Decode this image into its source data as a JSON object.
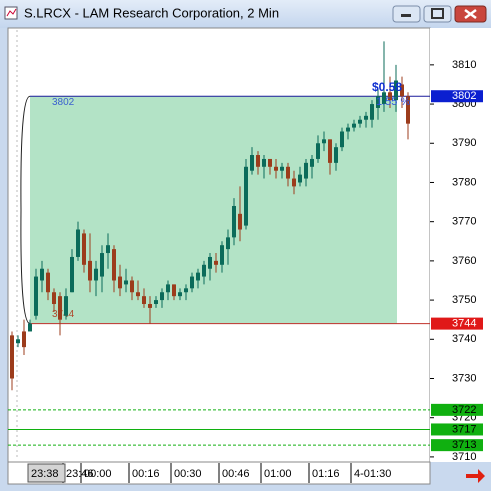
{
  "window": {
    "title": "S.LRCX - LAM Research Corporation, 2 Min"
  },
  "chart_data": {
    "type": "candlestick",
    "categories": [
      null,
      null,
      null,
      null,
      null,
      null,
      null,
      null,
      null,
      "23:46",
      null,
      null,
      "00:00",
      null,
      null,
      null,
      null,
      null,
      null,
      null,
      "00:16",
      null,
      null,
      null,
      null,
      null,
      null,
      "00:30",
      null,
      null,
      null,
      null,
      null,
      null,
      null,
      "00:46",
      null,
      null,
      null,
      null,
      null,
      null,
      "01:00",
      null,
      null,
      null,
      null,
      null,
      null,
      null,
      "01:16",
      null,
      null,
      null,
      null,
      null,
      null,
      "4-01:30",
      null,
      null,
      null,
      null,
      null,
      null,
      null,
      null,
      null
    ],
    "open": [
      3741,
      3739,
      3742,
      3742,
      3746,
      3755,
      3757,
      3752,
      3751,
      3746,
      3752,
      3761,
      3767,
      3760,
      3755,
      3756,
      3762,
      3763,
      3756,
      3754,
      3755,
      3752,
      3751,
      3749,
      3749,
      3750,
      3752,
      3754,
      3751,
      3752,
      3753,
      3755,
      3756,
      3758,
      3760,
      3759,
      3763,
      3766,
      3772,
      3769,
      3783,
      3787,
      3784,
      3786,
      3784,
      3783,
      3784,
      3781,
      3780,
      3781,
      3784,
      3786,
      3790,
      3791,
      3785,
      3789,
      3793,
      3794,
      3795,
      3796,
      3796,
      3799,
      3800,
      3803,
      3801,
      3805,
      3802
    ],
    "high": [
      3742,
      3741,
      3745,
      3745,
      3758,
      3760,
      3758,
      3753,
      3752,
      3753,
      3763,
      3770,
      3768,
      3767,
      3760,
      3764,
      3767,
      3764,
      3759,
      3758,
      3756,
      3755,
      3753,
      3751,
      3751,
      3753,
      3755,
      3754,
      3753,
      3754,
      3757,
      3758,
      3760,
      3762,
      3762,
      3765,
      3768,
      3776,
      3779,
      3786,
      3789,
      3788,
      3787,
      3786,
      3786,
      3785,
      3785,
      3783,
      3784,
      3786,
      3787,
      3792,
      3793,
      3791,
      3790,
      3794,
      3795,
      3796,
      3797,
      3798,
      3801,
      3804,
      3816,
      3807,
      3810,
      3807,
      3803
    ],
    "low": [
      3727,
      3738,
      3736,
      3742,
      3745,
      3752,
      3750,
      3747,
      3741,
      3745,
      3752,
      3760,
      3757,
      3752,
      3751,
      3752,
      3758,
      3752,
      3751,
      3752,
      3750,
      3750,
      3748,
      3744,
      3748,
      3748,
      3750,
      3750,
      3750,
      3750,
      3752,
      3753,
      3754,
      3755,
      3757,
      3757,
      3759,
      3764,
      3765,
      3768,
      3782,
      3782,
      3781,
      3782,
      3781,
      3781,
      3779,
      3777,
      3779,
      3779,
      3781,
      3785,
      3788,
      3782,
      3783,
      3788,
      3791,
      3793,
      3794,
      3794,
      3794,
      3796,
      3798,
      3799,
      3798,
      3799,
      3791
    ],
    "close": [
      3730,
      3740,
      3738,
      3744,
      3756,
      3758,
      3752,
      3749,
      3745,
      3751,
      3761,
      3768,
      3759,
      3755,
      3758,
      3762,
      3764,
      3755,
      3753,
      3755,
      3752,
      3751,
      3749,
      3748,
      3750,
      3752,
      3754,
      3751,
      3752,
      3753,
      3756,
      3757,
      3759,
      3761,
      3759,
      3764,
      3766,
      3774,
      3768,
      3784,
      3787,
      3784,
      3786,
      3784,
      3783,
      3784,
      3781,
      3779,
      3782,
      3785,
      3786,
      3790,
      3791,
      3785,
      3789,
      3793,
      3794,
      3795,
      3796,
      3797,
      3800,
      3802,
      3803,
      3801,
      3806,
      3802,
      3795
    ],
    "up_color": "#0b6b5a",
    "down_color": "#9c3c1c",
    "ylim": [
      3708.7,
      3819.4
    ],
    "yticks": [
      3710,
      3720,
      3730,
      3740,
      3750,
      3760,
      3770,
      3780,
      3790,
      3800,
      3810
    ],
    "zone": {
      "top": 3802,
      "bottom": 3744,
      "color": "#b3e3c6",
      "top_color": "#1a1a9c",
      "bottom_color": "#c0302a"
    },
    "price_levels": [
      {
        "value": 3722,
        "color": "#10b010"
      },
      {
        "value": 3717,
        "color": "#10b010"
      },
      {
        "value": 3713,
        "color": "#10b010"
      }
    ],
    "annotation": {
      "change": "$0.58",
      "percent": "1.55 %"
    },
    "cursor_time": "23:38"
  }
}
